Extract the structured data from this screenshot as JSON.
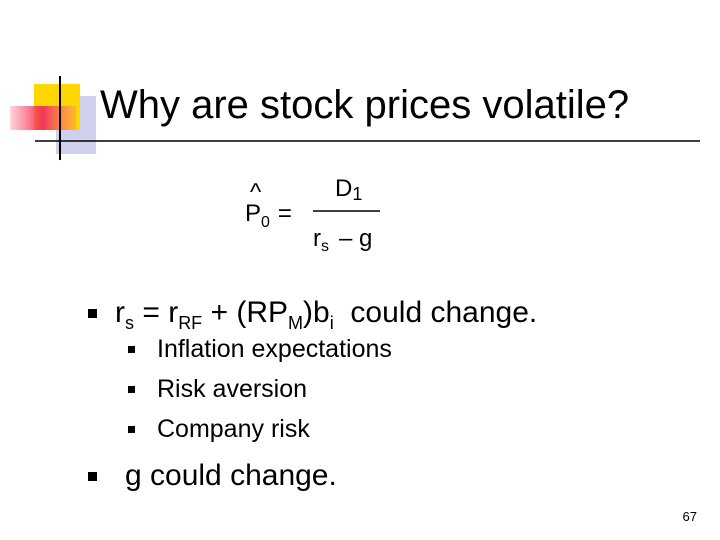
{
  "title": "Why are stock prices volatile?",
  "formula": {
    "hat": "^",
    "lhs": "P",
    "lhs_sub": "0",
    "equals": "=",
    "numerator": "D",
    "numerator_sub": "1",
    "denominator": "r",
    "denominator_sub": "s",
    "denominator_rest": "– g"
  },
  "bullets": [
    {
      "parts": [
        {
          "text": "r"
        },
        {
          "sub": "s"
        },
        {
          "text": " = r"
        },
        {
          "sub": "RF"
        },
        {
          "text": " + (RP"
        },
        {
          "sub": "M"
        },
        {
          "text": ")b"
        },
        {
          "sub": "i"
        },
        {
          "text": "  could change."
        }
      ],
      "sub_bullets": [
        "Inflation expectations",
        "Risk aversion",
        "Company risk"
      ]
    },
    {
      "parts": [
        {
          "text": "g could change."
        }
      ]
    }
  ],
  "page_number": "67"
}
